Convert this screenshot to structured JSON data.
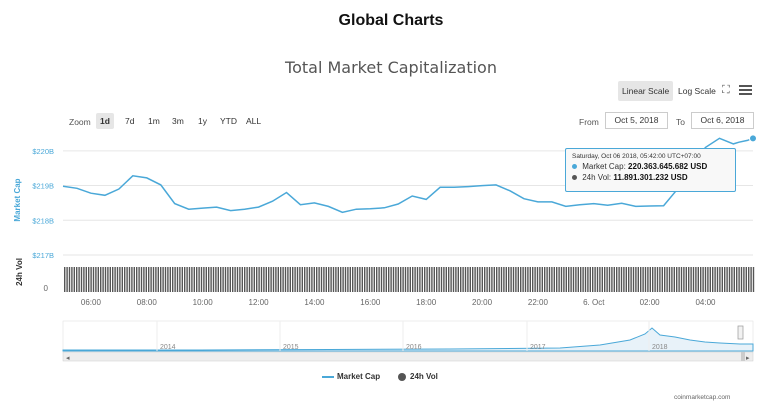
{
  "header": {
    "title": "Global Charts"
  },
  "chart_title": "Total Market Capitalization",
  "scale_buttons": {
    "linear": "Linear Scale",
    "log": "Log Scale"
  },
  "icons": {
    "fullscreen": "fullscreen-icon",
    "menu": "menu-icon"
  },
  "zoom": {
    "label": "Zoom",
    "options": [
      "1d",
      "7d",
      "1m",
      "3m",
      "1y",
      "YTD",
      "ALL"
    ],
    "selected": "1d"
  },
  "range": {
    "from_label": "From",
    "from_value": "Oct 5, 2018",
    "to_label": "To",
    "to_value": "Oct 6, 2018"
  },
  "tooltip": {
    "date": "Saturday, Oct 06 2018, 05:42:00 UTC+07:00",
    "market_cap_label": "Market Cap:",
    "market_cap_value": "220.363.645.682 USD",
    "volume_label": "24h Vol:",
    "volume_value": "11.891.301.232 USD"
  },
  "legend": {
    "market_cap": "Market Cap",
    "volume": "24h Vol"
  },
  "credit": "coinmarketcap.com",
  "colors": {
    "series": "#4aa8d8",
    "volume": "#555555",
    "navigator": "#4aa8d8"
  },
  "chart_data": {
    "type": "line",
    "title": "Total Market Capitalization",
    "ylabel": "Market Cap",
    "ylabel2": "24h Vol",
    "yticks": [
      "$217B",
      "$218B",
      "$219B",
      "$220B"
    ],
    "xticks": [
      "06:00",
      "08:00",
      "10:00",
      "12:00",
      "14:00",
      "16:00",
      "18:00",
      "20:00",
      "22:00",
      "6. Oct",
      "02:00",
      "04:00"
    ],
    "ylim": [
      217,
      220.6
    ],
    "series": [
      {
        "name": "Market Cap",
        "x": [
          5.0,
          5.5,
          6.0,
          6.5,
          7.0,
          7.5,
          8.0,
          8.5,
          9.0,
          9.5,
          10.0,
          10.5,
          11.0,
          11.5,
          12.0,
          12.5,
          13.0,
          13.5,
          14.0,
          14.5,
          15.0,
          15.5,
          16.0,
          16.5,
          17.0,
          17.5,
          18.0,
          18.5,
          19.0,
          19.5,
          20.0,
          20.5,
          21.0,
          21.5,
          22.0,
          22.5,
          23.0,
          23.5,
          24.0,
          24.5,
          25.0,
          25.5,
          26.0,
          26.5,
          27.0,
          27.5,
          28.0,
          28.5,
          29.0,
          29.2,
          29.5,
          29.7
        ],
        "values": [
          218.98,
          218.92,
          218.78,
          218.72,
          218.9,
          219.28,
          219.22,
          219.02,
          218.48,
          218.32,
          218.35,
          218.38,
          218.28,
          218.32,
          218.38,
          218.55,
          218.8,
          218.45,
          218.5,
          218.4,
          218.23,
          218.32,
          218.33,
          218.36,
          218.47,
          218.7,
          218.6,
          218.95,
          218.95,
          218.97,
          219.0,
          219.02,
          218.85,
          218.62,
          218.53,
          218.53,
          218.4,
          218.45,
          218.48,
          218.43,
          218.49,
          218.4,
          218.41,
          218.42,
          218.9,
          219.6,
          220.1,
          220.36,
          220.2,
          220.25,
          220.3,
          220.36
        ]
      }
    ],
    "navigator": {
      "labels": [
        "2014",
        "2015",
        "2016",
        "2017",
        "2018"
      ]
    }
  }
}
